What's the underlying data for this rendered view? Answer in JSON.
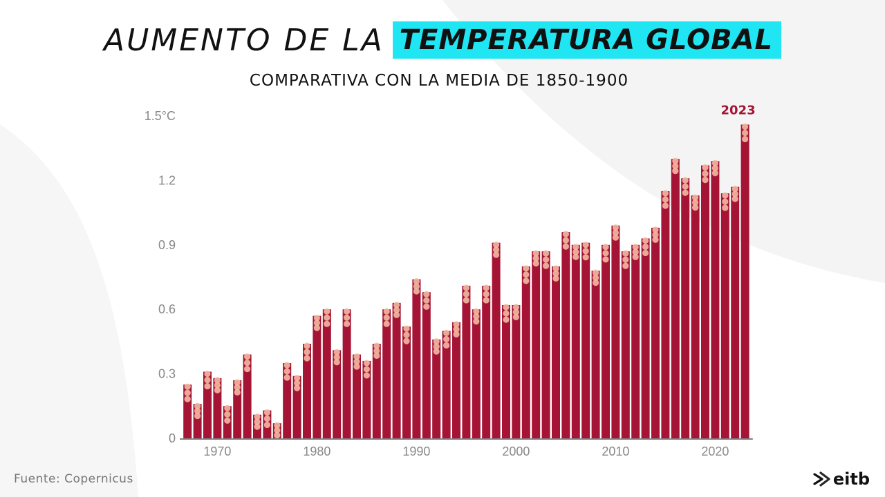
{
  "title": {
    "light": "AUMENTO DE LA",
    "bold": "TEMPERATURA GLOBAL"
  },
  "subtitle": "COMPARATIVA CON LA MEDIA DE 1850-1900",
  "source": "Fuente: Copernicus",
  "logo": {
    "text": "eitb",
    "icon": "eitb-logo-icon"
  },
  "colors": {
    "bar": "#a51435",
    "dot": "#f4b8a2",
    "highlight": "#1fe6f2",
    "label": "#a51435"
  },
  "chart_data": {
    "type": "bar",
    "title": "AUMENTO DE LA TEMPERATURA GLOBAL",
    "subtitle": "COMPARATIVA CON LA MEDIA DE 1850-1900",
    "xlabel": "",
    "ylabel": "",
    "ylim": [
      0,
      1.5
    ],
    "y_ticks": [
      0,
      0.3,
      0.6,
      0.9,
      1.2,
      1.5
    ],
    "y_tick_labels": [
      "0",
      "0.3",
      "0.6",
      "0.9",
      "1.2",
      "1.5°C"
    ],
    "x_ticks": [
      1970,
      1980,
      1990,
      2000,
      2010,
      2020
    ],
    "x_tick_labels": [
      "1970",
      "1980",
      "1990",
      "2000",
      "2010",
      "2020"
    ],
    "grid": false,
    "annotation": {
      "year": 2023,
      "text": "2023"
    },
    "series": [
      {
        "categories": [
          1967,
          1968,
          1969,
          1970,
          1971,
          1972,
          1973,
          1974,
          1975,
          1976,
          1977,
          1978,
          1979,
          1980,
          1981,
          1982,
          1983,
          1984,
          1985,
          1986,
          1987,
          1988,
          1989,
          1990,
          1991,
          1992,
          1993,
          1994,
          1995,
          1996,
          1997,
          1998,
          1999,
          2000,
          2001,
          2002,
          2003,
          2004,
          2005,
          2006,
          2007,
          2008,
          2009,
          2010,
          2011,
          2012,
          2013,
          2014,
          2015,
          2016,
          2017,
          2018,
          2019,
          2020,
          2021,
          2022,
          2023
        ],
        "values": [
          0.25,
          0.16,
          0.31,
          0.28,
          0.15,
          0.27,
          0.39,
          0.11,
          0.13,
          0.07,
          0.35,
          0.29,
          0.44,
          0.57,
          0.6,
          0.41,
          0.6,
          0.39,
          0.36,
          0.44,
          0.6,
          0.63,
          0.52,
          0.74,
          0.68,
          0.46,
          0.5,
          0.54,
          0.71,
          0.6,
          0.71,
          0.91,
          0.62,
          0.62,
          0.8,
          0.87,
          0.87,
          0.8,
          0.96,
          0.9,
          0.91,
          0.78,
          0.9,
          0.99,
          0.87,
          0.9,
          0.93,
          0.98,
          1.15,
          1.3,
          1.21,
          1.13,
          1.27,
          1.29,
          1.14,
          1.17,
          1.46
        ]
      }
    ]
  }
}
